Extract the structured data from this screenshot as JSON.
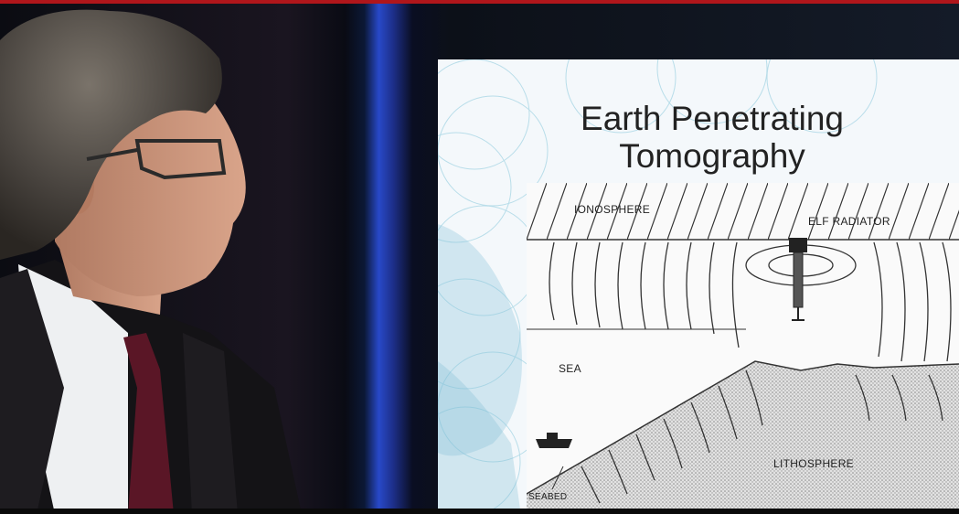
{
  "slide": {
    "title_line1": "Earth Penetrating",
    "title_line2": "Tomography"
  },
  "diagram": {
    "labels": {
      "ionosphere": "IONOSPHERE",
      "elf_radiator": "ELF RADIATOR",
      "sea": "SEA",
      "lithosphere": "LITHOSPHERE",
      "seabed": "SEABED"
    }
  },
  "colors": {
    "top_bar": "#b0161b",
    "stage_light": "#2849c9",
    "slide_background": "#f4f8fb"
  }
}
